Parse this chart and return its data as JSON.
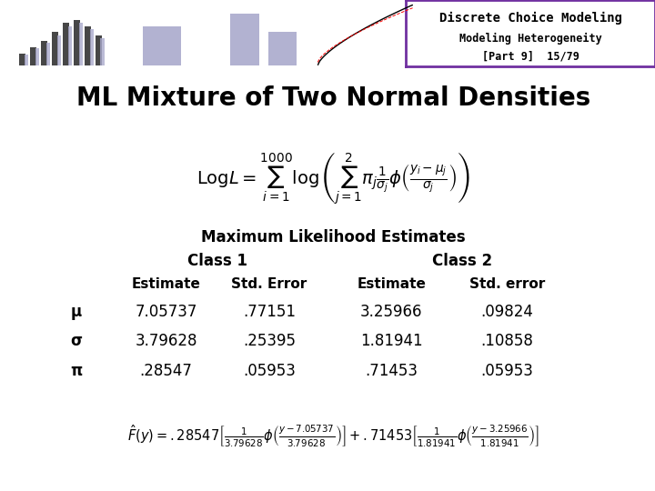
{
  "title": "ML Mixture of Two Normal Densities",
  "header_title": "Discrete Choice Modeling",
  "header_subtitle": "Modeling Heterogeneity",
  "header_page": "[Part 9]  15/79",
  "header_bg": "#ffffff",
  "header_border_color": "#7030a0",
  "left_bar_color": "#4a3f8f",
  "bg_color": "#ffffff",
  "title_color": "#000000",
  "table_header": "Maximum Likelihood Estimates",
  "col_class1": "Class 1",
  "col_class2": "Class 2",
  "col_estimate": "Estimate",
  "col_stderror": "Std. Error",
  "col_estimate2": "Estimate",
  "col_stderror2": "Std. error",
  "rows": [
    {
      "param": "μ",
      "est1": "7.05737",
      "se1": ".77151",
      "est2": "3.25966",
      "se2": ".09824"
    },
    {
      "param": "σ",
      "est1": "3.79628",
      "se1": ".25395",
      "est2": "1.81941",
      "se2": ".10858"
    },
    {
      "param": "π",
      "est1": ".28547",
      "se1": ".05953",
      "est2": ".71453",
      "se2": ".05953"
    }
  ],
  "formula_bottom": "\\hat{F}(y) = .28547\\left[\\frac{1}{3.79628}\\phi\\left(\\frac{y-7.05737}{3.79628}\\right)\\right]+.71453\\left[\\frac{1}{1.81941}\\phi\\left(\\frac{y-3.25966}{1.81941}\\right)\\right]",
  "logl_formula": "\\mathrm{Log}L = \\sum_{i=1}^{1000} \\log\\left(\\sum_{j=1}^{2} \\pi_j \\frac{1}{\\sigma_j}\\phi\\left(\\frac{y_i - \\mu_j}{\\sigma_j}\\right)\\right)"
}
